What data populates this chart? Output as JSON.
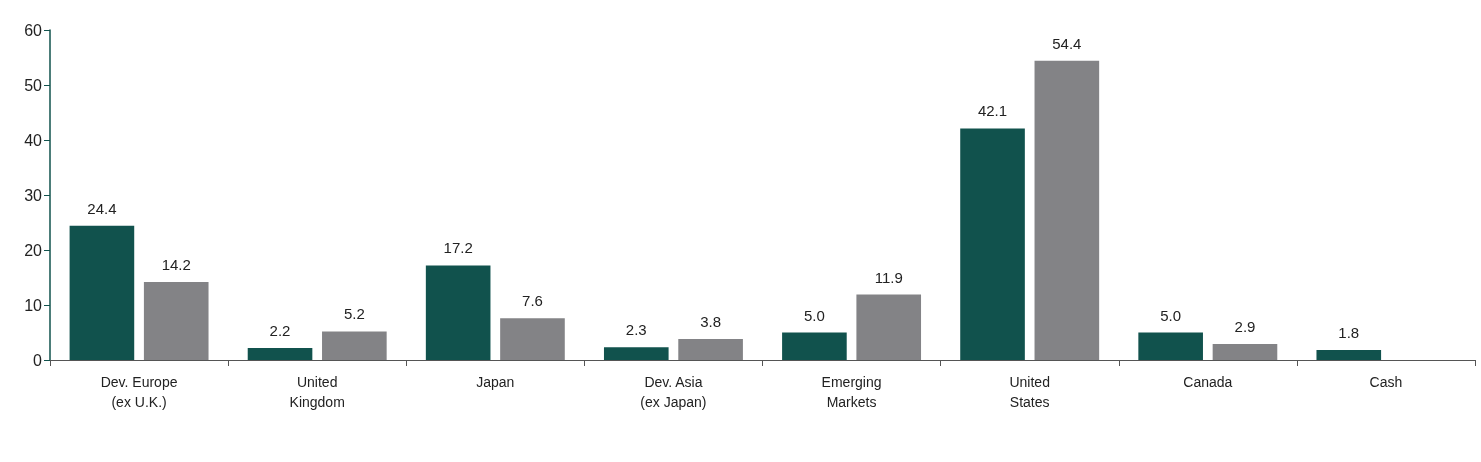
{
  "chart_data": {
    "type": "bar",
    "categories": [
      "Dev. Europe\n(ex U.K.)",
      "United\nKingdom",
      "Japan",
      "Dev. Asia\n(ex Japan)",
      "Emerging\nMarkets",
      "United\nStates",
      "Canada",
      "Cash"
    ],
    "series": [
      {
        "color": "#11524d",
        "values": [
          24.4,
          2.2,
          17.2,
          2.3,
          5.0,
          42.1,
          5.0,
          1.8
        ],
        "value_labels": [
          "24.4",
          "2.2",
          "17.2",
          "2.3",
          "5.0",
          "42.1",
          "5.0",
          "1.8"
        ]
      },
      {
        "color": "#838386",
        "values": [
          14.2,
          5.2,
          7.6,
          3.8,
          11.9,
          54.4,
          2.9,
          null
        ],
        "value_labels": [
          "14.2",
          "5.2",
          "7.6",
          "3.8",
          "11.9",
          "54.4",
          "2.9",
          null
        ]
      }
    ],
    "ylim": [
      0,
      60
    ],
    "yticks": [
      0,
      10,
      20,
      30,
      40,
      50,
      60
    ],
    "grid": false
  }
}
